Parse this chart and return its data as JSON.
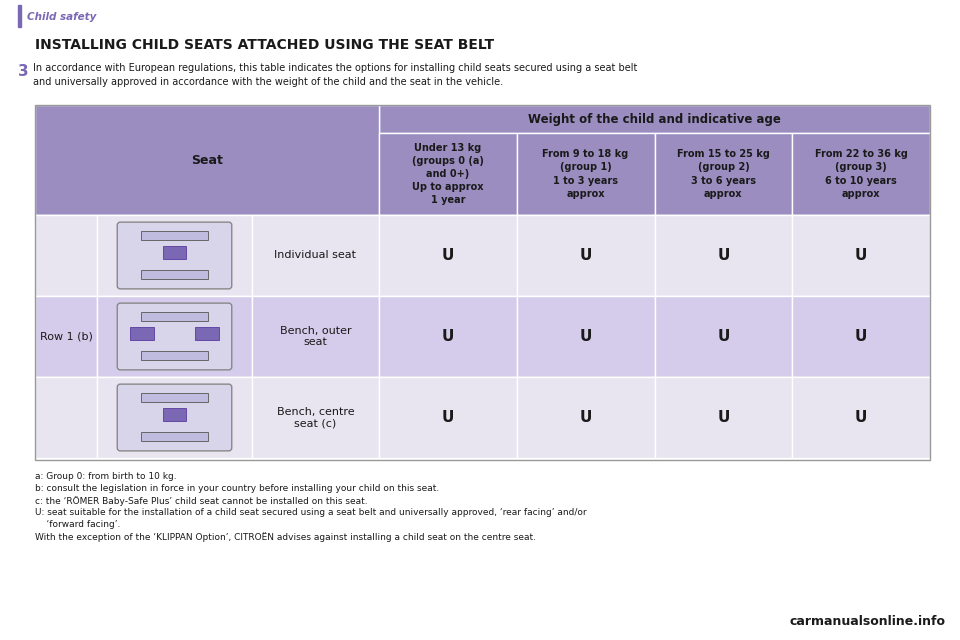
{
  "page_bg": "#ffffff",
  "header_text": "Child safety",
  "header_bar_color": "#7B68B5",
  "title_text": "INSTALLING CHILD SEATS ATTACHED USING THE SEAT BELT",
  "title_color": "#1a1a1a",
  "intro_number": "3",
  "intro_number_color": "#7B68B5",
  "intro_text": "In accordance with European regulations, this table indicates the options for installing child seats secured using a seat belt\nand universally approved in accordance with the weight of the child and the seat in the vehicle.",
  "intro_text_color": "#1a1a1a",
  "table": {
    "header_bg": "#9B8DC0",
    "row_bg_light": "#E8E4F0",
    "row_bg_dark": "#D4CCEA",
    "border_color": "#ffffff",
    "span_header_text": "Weight of the child and indicative age",
    "col_headers": [
      "Seat",
      "Under 13 kg\n(groups 0 (a)\nand 0+)\nUp to approx\n1 year",
      "From 9 to 18 kg\n(group 1)\n1 to 3 years\napprox",
      "From 15 to 25 kg\n(group 2)\n3 to 6 years\napprox",
      "From 22 to 36 kg\n(group 3)\n6 to 10 years\napprox"
    ],
    "row_label": "Row 1 (b)",
    "rows": [
      {
        "seat_type": "Individual seat",
        "values": [
          "U",
          "U",
          "U",
          "U"
        ]
      },
      {
        "seat_type": "Bench, outer\nseat",
        "values": [
          "U",
          "U",
          "U",
          "U"
        ]
      },
      {
        "seat_type": "Bench, centre\nseat (c)",
        "values": [
          "U",
          "U",
          "U",
          "U"
        ]
      }
    ]
  },
  "footnotes": [
    "a: Group 0: from birth to 10 kg.",
    "b: consult the legislation in force in your country before installing your child on this seat.",
    "c: the ‘RÖMER Baby-Safe Plus’ child seat cannot be installed on this seat.",
    "U: seat suitable for the installation of a child seat secured using a seat belt and universally approved, ‘rear facing’ and/or",
    "    ‘forward facing’.",
    "With the exception of the ‘KLIPPAN Option’, CITROËN advises against installing a child seat on the centre seat."
  ],
  "footnote_color": "#1a1a1a",
  "watermark_text": "carmanualsonline.info",
  "watermark_color": "#1a1a1a"
}
